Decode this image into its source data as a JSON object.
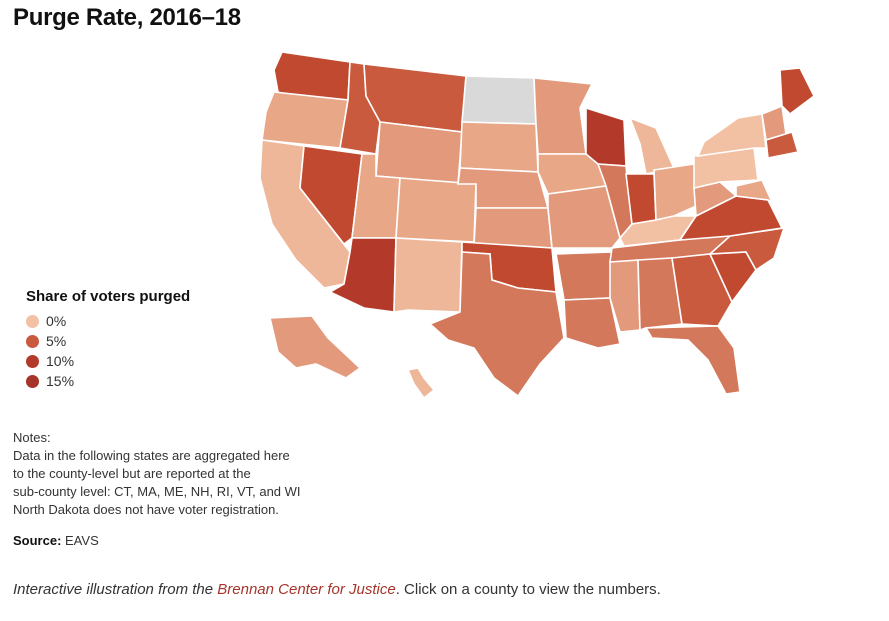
{
  "title": "Purge Rate, 2016–18",
  "legend": {
    "title": "Share of voters purged",
    "items": [
      {
        "label": "0%",
        "color": "#f2c1a4"
      },
      {
        "label": "5%",
        "color": "#c95a3e"
      },
      {
        "label": "10%",
        "color": "#b33a2a"
      },
      {
        "label": "15%",
        "color": "#a6342a"
      }
    ]
  },
  "notes": {
    "heading": "Notes:",
    "line1": "Data in the following states are aggregated here",
    "line2": "to the county-level but are reported at the",
    "line3": "sub-county level: CT, MA, ME, NH, RI, VT, and WI",
    "line4": "North Dakota does not have voter registration."
  },
  "source": {
    "label": "Source:",
    "value": "EAVS"
  },
  "credit": {
    "prefix": "Interactive illustration from the",
    "link": "Brennan Center for Justice",
    "suffix": ". Click on a county to view the numbers."
  },
  "colors": {
    "low": "#f2c1a4",
    "midlow": "#e39a7c",
    "mid": "#d4785c",
    "high": "#c0492f",
    "nodata": "#d9d9d9"
  }
}
